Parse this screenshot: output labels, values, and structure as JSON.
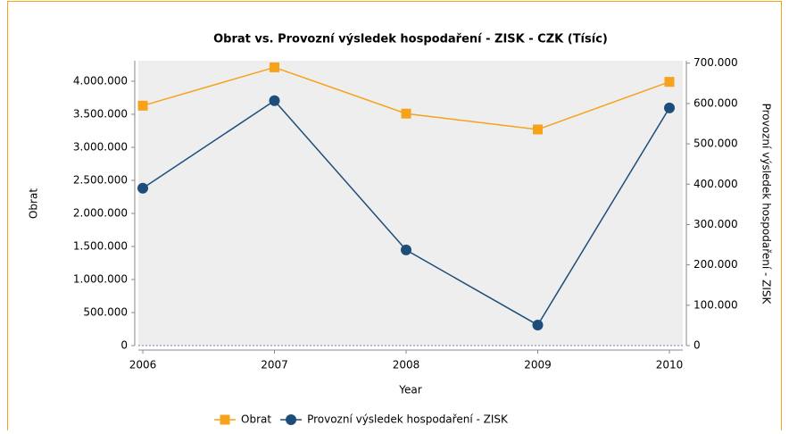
{
  "chart_data": {
    "type": "line",
    "title": "Obrat vs. Provozní výsledek hospodaření - ZISK - CZK (Tísíc)",
    "x_label": "Year",
    "y_label": "Obrat",
    "y2_label": "Provozní výsledek hospodaření - ZISK",
    "categories": [
      "2006",
      "2007",
      "2008",
      "2009",
      "2010"
    ],
    "series": [
      {
        "name": "Obrat",
        "color": "#f7a21b",
        "marker": "square",
        "values": [
          3630000,
          4210000,
          3510000,
          3270000,
          3990000
        ]
      },
      {
        "name": "Provozní výsledek hospodaření - ZISK",
        "color": "#1d4e79",
        "marker": "circle",
        "axis": "y2",
        "values": [
          390000,
          607000,
          237000,
          51000,
          589000
        ]
      }
    ],
    "ylim": [
      0,
      4310000
    ],
    "yticks": [
      0,
      {
        "value": 500000,
        "label": "500.000"
      },
      {
        "value": 1000000,
        "label": "1.000.000"
      },
      {
        "value": 1500000,
        "label": "1.500.000"
      },
      {
        "value": 2000000,
        "label": "2.000.000"
      },
      {
        "value": 2500000,
        "label": "2.500.000"
      },
      {
        "value": 3000000,
        "label": "3.000.000"
      },
      {
        "value": 3500000,
        "label": "3.500.000"
      },
      {
        "value": 4000000,
        "label": "4.000.000"
      }
    ],
    "y2lim": [
      0,
      706000
    ],
    "y2ticks": [
      0,
      {
        "value": 100000,
        "label": "100.000"
      },
      {
        "value": 200000,
        "label": "200.000"
      },
      {
        "value": 300000,
        "label": "300.000"
      },
      {
        "value": 400000,
        "label": "400.000"
      },
      {
        "value": 500000,
        "label": "500.000"
      },
      {
        "value": 600000,
        "label": "600.000"
      },
      {
        "value": 700000,
        "label": "700.000"
      }
    ],
    "legend": "bottom"
  }
}
